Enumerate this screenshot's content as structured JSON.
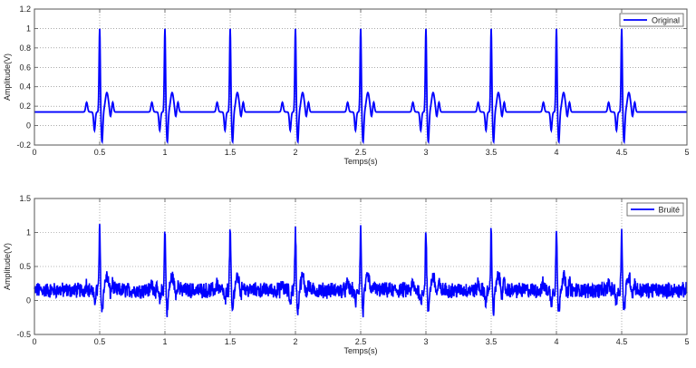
{
  "chart_data": [
    {
      "type": "line",
      "title": "",
      "xlabel": "Temps(s)",
      "ylabel": "Amplitude(V)",
      "xlim": [
        0,
        5
      ],
      "ylim": [
        -0.2,
        1.2
      ],
      "xticks": [
        "0",
        "0.5",
        "1",
        "1.5",
        "2",
        "2.5",
        "3",
        "3.5",
        "4",
        "4.5",
        "5"
      ],
      "yticks": [
        "-0.2",
        "0",
        "0.2",
        "0.4",
        "0.6",
        "0.8",
        "1",
        "1.2"
      ],
      "grid": true,
      "legend": {
        "position": "upper right",
        "entries": [
          "Original"
        ]
      },
      "series": [
        {
          "name": "Original",
          "color": "#0000ff",
          "description": "Clean synthetic ECG, baseline ~0.14 V, R peaks 1.0 V at 0.5 s intervals (0.5 to 4.5 s), Q/S dips to about -0.05/-0.17 V, T wave ~0.34 V"
        }
      ],
      "r_peak_times": [
        0.5,
        1.0,
        1.5,
        2.0,
        2.5,
        3.0,
        3.5,
        4.0,
        4.5
      ],
      "baseline": 0.14,
      "r_peak_value": 1.0
    },
    {
      "type": "line",
      "title": "",
      "xlabel": "Temps(s)",
      "ylabel": "Amplitude(V)",
      "xlim": [
        0,
        5
      ],
      "ylim": [
        -0.5,
        1.5
      ],
      "xticks": [
        "0",
        "0.5",
        "1",
        "1.5",
        "2",
        "2.5",
        "3",
        "3.5",
        "4",
        "4.5",
        "5"
      ],
      "yticks": [
        "-0.5",
        "0",
        "0.5",
        "1",
        "1.5"
      ],
      "grid": true,
      "legend": {
        "position": "upper right",
        "entries": [
          "Bruité"
        ]
      },
      "series": [
        {
          "name": "Bruité",
          "color": "#0000ff",
          "description": "Noisy ECG, baseline ~0.15 V with noise ±0.1 V, R peaks ~1.05 V, S dips ~-0.2 V"
        }
      ],
      "r_peak_times": [
        0.5,
        1.0,
        1.5,
        2.0,
        2.5,
        3.0,
        3.5,
        4.0,
        4.5
      ],
      "baseline": 0.15,
      "r_peak_value": 1.05
    }
  ],
  "top": {
    "xlabel": "Temps(s)",
    "ylabel": "Amplitude(V)",
    "legend": "Original",
    "xticks": [
      "0",
      "0.5",
      "1",
      "1.5",
      "2",
      "2.5",
      "3",
      "3.5",
      "4",
      "4.5",
      "5"
    ],
    "yticks": [
      "-0.2",
      "0",
      "0.2",
      "0.4",
      "0.6",
      "0.8",
      "1",
      "1.2"
    ]
  },
  "bottom": {
    "xlabel": "Temps(s)",
    "ylabel": "Amplitude(V)",
    "legend": "Bruité",
    "xticks": [
      "0",
      "0.5",
      "1",
      "1.5",
      "2",
      "2.5",
      "3",
      "3.5",
      "4",
      "4.5",
      "5"
    ],
    "yticks": [
      "-0.5",
      "0",
      "0.5",
      "1",
      "1.5"
    ]
  },
  "colors": {
    "line": "#0000ff",
    "axes": "#555555",
    "grid": "#888888"
  }
}
